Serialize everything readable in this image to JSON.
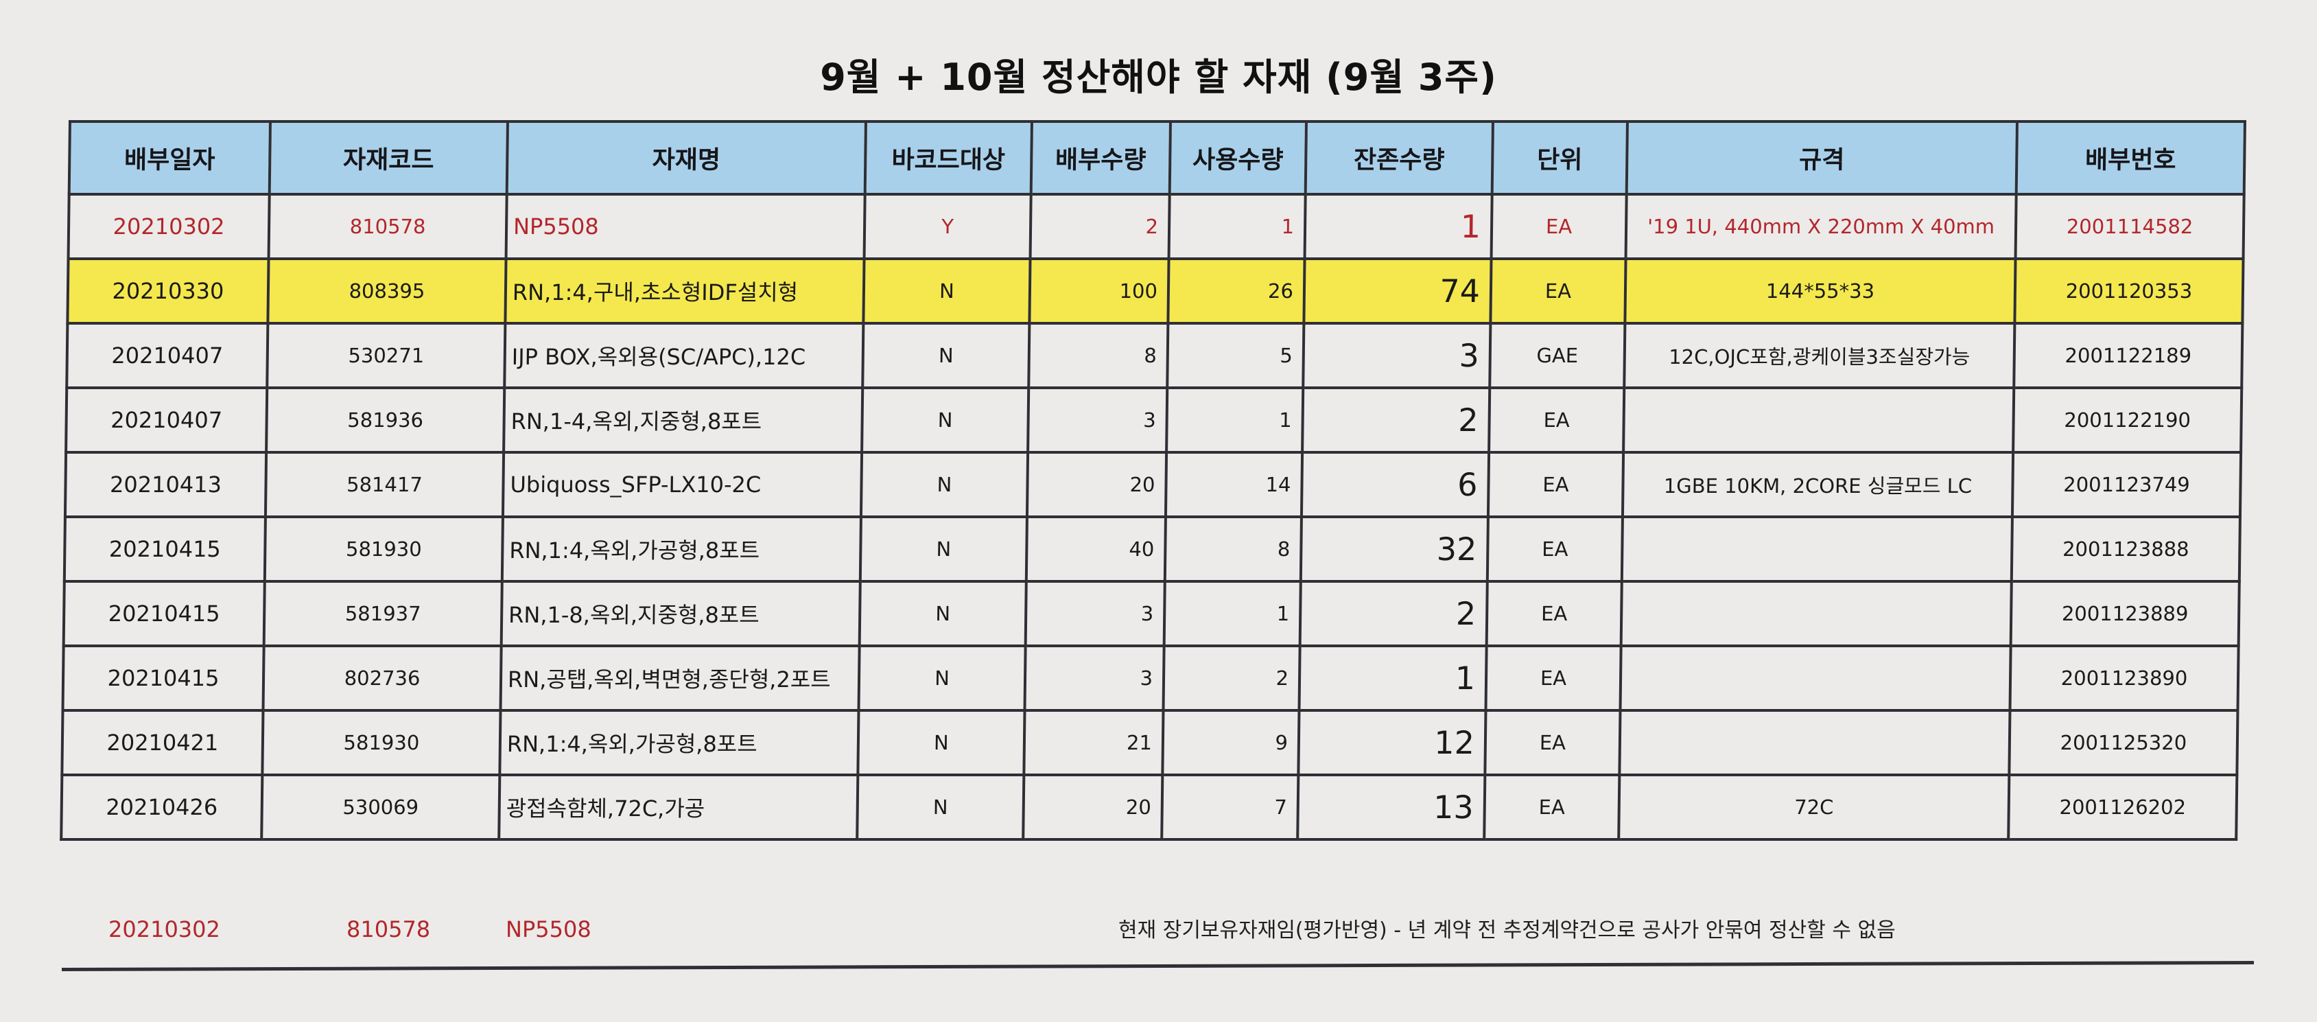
{
  "title": "9월 + 10월 정산해야 할 자재 (9월 3주)",
  "headers": [
    "배부일자",
    "자재코드",
    "자재명",
    "바코드대상",
    "배부수량",
    "사용수량",
    "잔존수량",
    "단위",
    "규격",
    "배부번호"
  ],
  "rows": [
    {
      "date": "20210302",
      "code": "810578",
      "name": "NP5508",
      "barcode": "Y",
      "issued": "2",
      "used": "1",
      "remaining": "1",
      "unit": "EA",
      "spec": "'19 1U, 440mm X 220mm X 40mm",
      "number": "2001114582"
    },
    {
      "date": "20210330",
      "code": "808395",
      "name": "RN,1:4,구내,초소형IDF설치형",
      "barcode": "N",
      "issued": "100",
      "used": "26",
      "remaining": "74",
      "unit": "EA",
      "spec": "144*55*33",
      "number": "2001120353"
    },
    {
      "date": "20210407",
      "code": "530271",
      "name": "IJP BOX,옥외용(SC/APC),12C",
      "barcode": "N",
      "issued": "8",
      "used": "5",
      "remaining": "3",
      "unit": "GAE",
      "spec": "12C,OJC포함,광케이블3조실장가능",
      "number": "2001122189"
    },
    {
      "date": "20210407",
      "code": "581936",
      "name": "RN,1-4,옥외,지중형,8포트",
      "barcode": "N",
      "issued": "3",
      "used": "1",
      "remaining": "2",
      "unit": "EA",
      "spec": "",
      "number": "2001122190"
    },
    {
      "date": "20210413",
      "code": "581417",
      "name": "Ubiquoss_SFP-LX10-2C",
      "barcode": "N",
      "issued": "20",
      "used": "14",
      "remaining": "6",
      "unit": "EA",
      "spec": "1GBE 10KM, 2CORE 싱글모드 LC",
      "number": "2001123749"
    },
    {
      "date": "20210415",
      "code": "581930",
      "name": "RN,1:4,옥외,가공형,8포트",
      "barcode": "N",
      "issued": "40",
      "used": "8",
      "remaining": "32",
      "unit": "EA",
      "spec": "",
      "number": "2001123888"
    },
    {
      "date": "20210415",
      "code": "581937",
      "name": "RN,1-8,옥외,지중형,8포트",
      "barcode": "N",
      "issued": "3",
      "used": "1",
      "remaining": "2",
      "unit": "EA",
      "spec": "",
      "number": "2001123889"
    },
    {
      "date": "20210415",
      "code": "802736",
      "name": "RN,공탭,옥외,벽면형,종단형,2포트",
      "barcode": "N",
      "issued": "3",
      "used": "2",
      "remaining": "1",
      "unit": "EA",
      "spec": "",
      "number": "2001123890"
    },
    {
      "date": "20210421",
      "code": "581930",
      "name": "RN,1:4,옥외,가공형,8포트",
      "barcode": "N",
      "issued": "21",
      "used": "9",
      "remaining": "12",
      "unit": "EA",
      "spec": "",
      "number": "2001125320"
    },
    {
      "date": "20210426",
      "code": "530069",
      "name": "광접속함체,72C,가공",
      "barcode": "N",
      "issued": "20",
      "used": "7",
      "remaining": "13",
      "unit": "EA",
      "spec": "72C",
      "number": "2001126202"
    }
  ],
  "footer": {
    "date": "20210302",
    "code": "810578",
    "name": "NP5508",
    "note": "현재 장기보유자재임(평가반영)  -  년 계약 전 추정계약건으로 공사가 안묶여 정산할 수 없음"
  },
  "colors": {
    "header_bg": "#a9d0ea",
    "highlight": "#f4e84e",
    "red_text": "#b3262b"
  }
}
